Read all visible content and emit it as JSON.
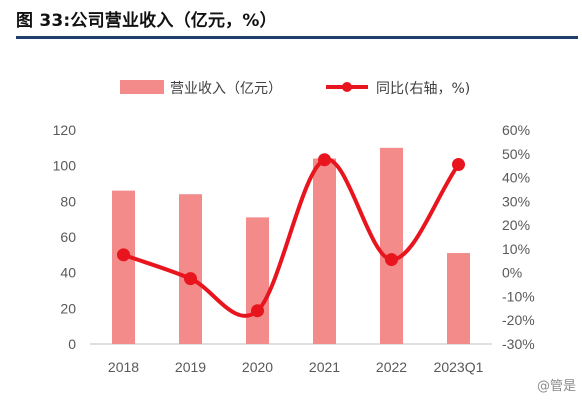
{
  "figure_title": "图 33:公司营业收入（亿元，%）",
  "watermark": "@管是",
  "colors": {
    "bar": "#f28b89",
    "line": "#e8141e",
    "rule": "#1f3f6b"
  },
  "chart_data": {
    "type": "bar+line",
    "categories": [
      "2018",
      "2019",
      "2020",
      "2021",
      "2022",
      "2023Q1"
    ],
    "series": [
      {
        "name": "营业收入（亿元）",
        "type": "bar",
        "axis": "left",
        "values": [
          86,
          84,
          71,
          104,
          110,
          51
        ]
      },
      {
        "name": "同比(右轴，%)",
        "type": "line",
        "axis": "right",
        "smooth": true,
        "values": [
          7.5,
          -2.5,
          -16,
          47.5,
          5.5,
          45.5
        ]
      }
    ],
    "left_axis": {
      "ylim": [
        0,
        120
      ],
      "ticks": [
        0,
        20,
        40,
        60,
        80,
        100,
        120
      ]
    },
    "right_axis": {
      "ylim": [
        -30,
        60
      ],
      "ticks": [
        "-30%",
        "-20%",
        "-10%",
        "0%",
        "10%",
        "20%",
        "30%",
        "40%",
        "50%",
        "60%"
      ]
    },
    "legend": {
      "position": "top-center",
      "bar_label": "营业收入（亿元）",
      "line_label": "同比(右轴，%)"
    },
    "grid": false
  }
}
